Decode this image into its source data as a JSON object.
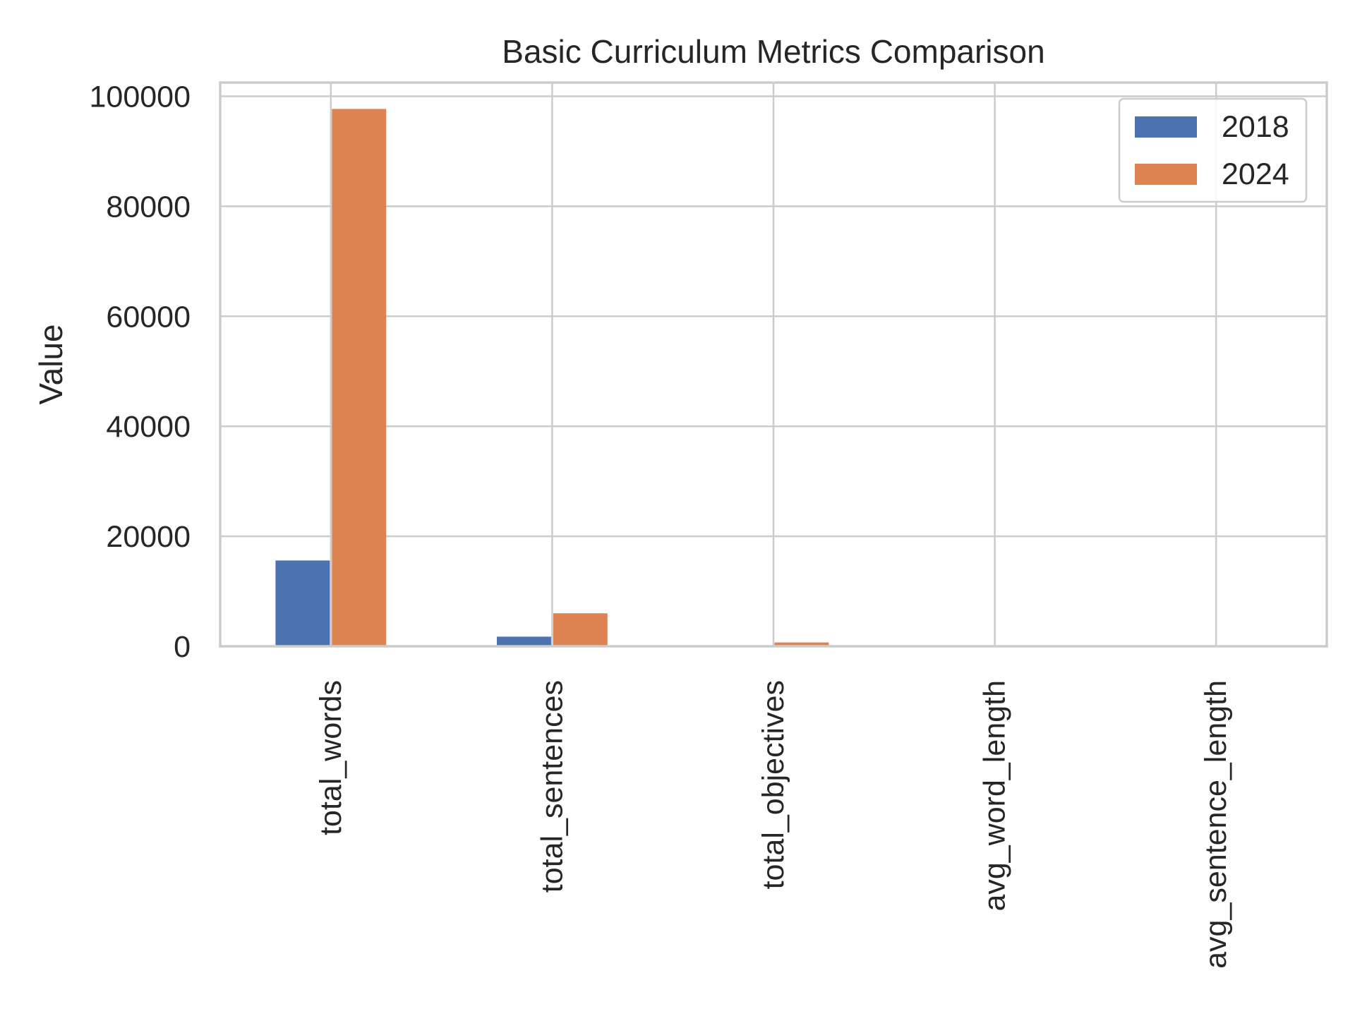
{
  "chart_data": {
    "type": "bar",
    "title": "Basic Curriculum Metrics Comparison",
    "xlabel": "",
    "ylabel": "Value",
    "categories": [
      "total_words",
      "total_sentences",
      "total_objectives",
      "avg_word_length",
      "avg_sentence_length"
    ],
    "series": [
      {
        "name": "2018",
        "values": [
          15600,
          1750,
          60,
          5,
          9
        ],
        "color": "#4c72b0"
      },
      {
        "name": "2024",
        "values": [
          97700,
          6000,
          700,
          6,
          16
        ],
        "color": "#dd8452"
      }
    ],
    "ylim": [
      0,
      102500
    ],
    "yticks": [
      0,
      20000,
      40000,
      60000,
      80000,
      100000
    ],
    "grid": true,
    "legend_position": "top-right"
  }
}
